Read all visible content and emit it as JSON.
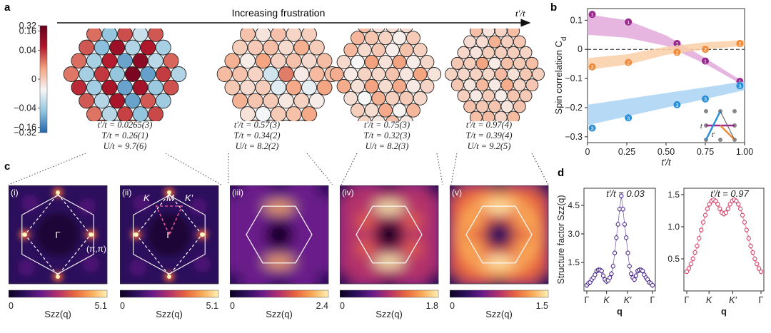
{
  "panel_labels": {
    "a": "a",
    "b": "b",
    "c": "c",
    "d": "d"
  },
  "panel_a": {
    "arrow_label": "Increasing frustration",
    "arrow_axis": "t′/t",
    "colorbar_ticks": [
      "0.32",
      "0.16",
      "0.04",
      "0",
      "−0.04",
      "−0.16",
      "−0.32"
    ],
    "colorbar_tick_values": [
      0.32,
      0.16,
      0.04,
      0,
      -0.04,
      -0.16,
      -0.32
    ],
    "colormap_colors": [
      "#2166ac",
      "#92c5de",
      "#f7f7f7",
      "#f4a582",
      "#b2182b",
      "#67001f"
    ],
    "lattices": [
      {
        "tp_label": "t′/t = 0.0265(3)",
        "T_label": "T/t = 0.26(1)",
        "U_label": "U/t = 9.7(6)",
        "strength": 1.0
      },
      {
        "tp_label": "t′/t = 0.57(3)",
        "T_label": "T/t = 0.34(2)",
        "U_label": "U/t = 8.2(2)",
        "strength": 0.55
      },
      {
        "tp_label": "t′/t = 0.75(3)",
        "T_label": "T/t = 0.32(3)",
        "U_label": "U/t = 8.2(3)",
        "strength": 0.45
      },
      {
        "tp_label": "t′/t = 0.97(4)",
        "T_label": "T/t = 0.39(4)",
        "U_label": "U/t = 9.2(5)",
        "strength": 0.35
      }
    ]
  },
  "panel_c": {
    "maps": [
      {
        "roman": "(i)",
        "cmax": "5.1",
        "cmin": "0",
        "label": "Szz(q)",
        "pattern": "square-peaks"
      },
      {
        "roman": "(ii)",
        "cmax": "5.1",
        "cmin": "0",
        "label": "Szz(q)",
        "pattern": "square-peaks-k"
      },
      {
        "roman": "(iii)",
        "cmax": "2.4",
        "cmin": "0",
        "label": "Szz(q)",
        "pattern": "hex-diffuse"
      },
      {
        "roman": "(iv)",
        "cmax": "1.8",
        "cmin": "0",
        "label": "Szz(q)",
        "pattern": "hex-ring"
      },
      {
        "roman": "(v)",
        "cmax": "1.5",
        "cmin": "0",
        "label": "Szz(q)",
        "pattern": "hex-bright"
      }
    ],
    "annotations": {
      "gamma": "Γ",
      "pipi": "(π,π)",
      "K": "K",
      "M": "M",
      "Kp": "K′"
    },
    "cmap_colors": [
      "#0d0221",
      "#2c0f5c",
      "#6a1b8a",
      "#b3316b",
      "#e8643f",
      "#f9a956",
      "#fdf2b4"
    ]
  },
  "chart_data": [
    {
      "type": "scatter",
      "xlabel": "t′/t",
      "ylabel": "Spin correlation C",
      "ylabel_sub": "d",
      "xlim": [
        0,
        1.0
      ],
      "ylim": [
        -0.32,
        0.14
      ],
      "xticks": [
        "0",
        "0.25",
        "0.50",
        "0.75",
        "1.00"
      ],
      "xtick_values": [
        0,
        0.25,
        0.5,
        0.75,
        1.0
      ],
      "yticks": [
        "0.1",
        "0",
        "−0.1",
        "−0.2",
        "−0.3"
      ],
      "ytick_values": [
        0.1,
        0,
        -0.1,
        -0.2,
        -0.3
      ],
      "series": [
        {
          "marker_label": "1",
          "color": "#9b2a8f",
          "band": "#e2a9da",
          "x": [
            0.03,
            0.26,
            0.57,
            0.75,
            0.97
          ],
          "y": [
            0.12,
            0.094,
            0.02,
            -0.04,
            -0.11
          ],
          "band_x": [
            0,
            0.25,
            0.5,
            0.75,
            1.0
          ],
          "band_y": [
            0.085,
            0.07,
            0.03,
            -0.04,
            -0.12
          ],
          "band_w": [
            0.035,
            0.03,
            0.018,
            0.01,
            0.006
          ]
        },
        {
          "marker_label": "2",
          "color": "#f08a3c",
          "band": "#f9cfa8",
          "x": [
            0.03,
            0.26,
            0.57,
            0.75,
            0.97
          ],
          "y": [
            -0.06,
            -0.045,
            -0.01,
            0.0,
            0.02
          ],
          "band_x": [
            0,
            0.25,
            0.5,
            0.75,
            1.0
          ],
          "band_y": [
            -0.05,
            -0.035,
            -0.005,
            0.012,
            0.022
          ],
          "band_w": [
            0.02,
            0.018,
            0.014,
            0.012,
            0.01
          ]
        },
        {
          "marker_label": "3",
          "color": "#2b8fd8",
          "band": "#a9d2f3",
          "x": [
            0.03,
            0.26,
            0.57,
            0.75,
            0.97
          ],
          "y": [
            -0.27,
            -0.235,
            -0.19,
            -0.17,
            -0.125
          ],
          "band_x": [
            0,
            0.25,
            0.5,
            0.75,
            1.0
          ],
          "band_y": [
            -0.225,
            -0.2,
            -0.175,
            -0.15,
            -0.125
          ],
          "band_w": [
            0.035,
            0.03,
            0.025,
            0.02,
            0.015
          ]
        }
      ],
      "inset_labels": {
        "t": "t",
        "tp": "t′"
      }
    },
    {
      "type": "line",
      "title": "t′/t = 0.03",
      "ylabel": "Structure factor Szz(q)",
      "xticks": [
        "Γ",
        "K",
        "K′",
        "Γ"
      ],
      "xlabel": "q",
      "yticks": [
        "1.5",
        "3.0",
        "4.5"
      ],
      "ytick_values": [
        1.5,
        3.0,
        4.5
      ],
      "ylim": [
        0,
        5.4
      ],
      "color": "#4b2a8f",
      "y": [
        0.3,
        0.4,
        0.45,
        0.6,
        0.7,
        0.85,
        1.05,
        1.1,
        1.1,
        1.05,
        0.8,
        0.6,
        0.5,
        0.55,
        0.7,
        0.9,
        1.3,
        2.0,
        2.8,
        3.5,
        4.3,
        5.0,
        4.3,
        3.5,
        2.8,
        2.0,
        1.3,
        0.9,
        0.7,
        0.6,
        0.8,
        1.05,
        1.1,
        1.1,
        1.05,
        0.85,
        0.7,
        0.6,
        0.45,
        0.4,
        0.3
      ]
    },
    {
      "type": "line",
      "title": "t′/t = 0.97",
      "xticks": [
        "Γ",
        "K",
        "K′",
        "Γ"
      ],
      "xlabel": "q",
      "yticks": [
        "0.5",
        "1.0",
        "1.5"
      ],
      "ytick_values": [
        0.5,
        1.0,
        1.5
      ],
      "ylim": [
        0,
        1.6
      ],
      "color": "#d7466b",
      "y": [
        0.3,
        0.35,
        0.42,
        0.5,
        0.6,
        0.7,
        0.82,
        0.95,
        1.07,
        1.18,
        1.28,
        1.35,
        1.4,
        1.42,
        1.4,
        1.35,
        1.28,
        1.22,
        1.2,
        1.22,
        1.28,
        1.35,
        1.4,
        1.42,
        1.4,
        1.35,
        1.28,
        1.18,
        1.07,
        0.95,
        0.82,
        0.7,
        0.6,
        0.5,
        0.42,
        0.35,
        0.3
      ]
    }
  ]
}
